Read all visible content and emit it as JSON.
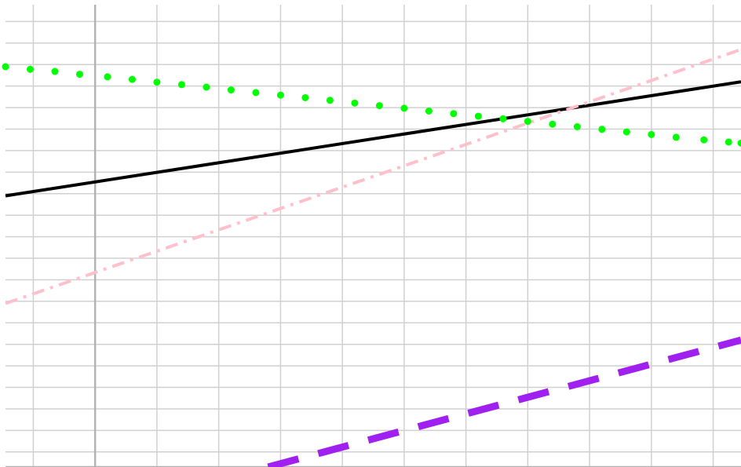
{
  "chart_data": {
    "type": "line",
    "title": "",
    "xlabel": "",
    "ylabel": "",
    "grid": true,
    "xlim": [
      -1.45,
      10.45
    ],
    "ylim": [
      -7.7,
      14.0
    ],
    "x_gridlines": [
      -1,
      0,
      1,
      2,
      3,
      4,
      5,
      6,
      7,
      8,
      9,
      10
    ],
    "y_gridlines": [
      13,
      12,
      11,
      10,
      9,
      8,
      7,
      6,
      5,
      4,
      3,
      2,
      1,
      0,
      -1,
      -2,
      -3,
      -4,
      -5,
      -6,
      -7
    ],
    "axis_lines": {
      "x_zero": 0,
      "y_zero": -7.7
    },
    "series": [
      {
        "color": "#000000",
        "style": "solid",
        "x": [
          -1.45,
          10.45
        ],
        "y": [
          4.9,
          10.2
        ]
      },
      {
        "color": "#ffc0cb",
        "style": "dashdot",
        "x": [
          -1.45,
          10.45
        ],
        "y": [
          -0.1,
          11.7
        ]
      },
      {
        "color": "#00ff00",
        "style": "dotted",
        "x": [
          -1.45,
          -1.05,
          -0.65,
          -0.25,
          0.2,
          0.6,
          1.0,
          1.4,
          1.8,
          2.2,
          2.6,
          3.0,
          3.4,
          3.8,
          4.2,
          4.6,
          5.0,
          5.4,
          5.8,
          6.2,
          6.6,
          7.0,
          7.4,
          7.8,
          8.2,
          8.6,
          9.0,
          9.4,
          9.85,
          10.25,
          10.45
        ],
        "y": [
          10.9,
          10.78,
          10.68,
          10.55,
          10.43,
          10.31,
          10.18,
          10.07,
          9.95,
          9.82,
          9.7,
          9.58,
          9.46,
          9.34,
          9.21,
          9.09,
          8.97,
          8.84,
          8.72,
          8.6,
          8.48,
          8.36,
          8.23,
          8.11,
          7.99,
          7.87,
          7.75,
          7.62,
          7.5,
          7.4,
          7.35
        ]
      },
      {
        "color": "#a020f0",
        "style": "dashed",
        "x": [
          2.8,
          10.45
        ],
        "y": [
          -7.7,
          -1.8
        ]
      }
    ]
  }
}
